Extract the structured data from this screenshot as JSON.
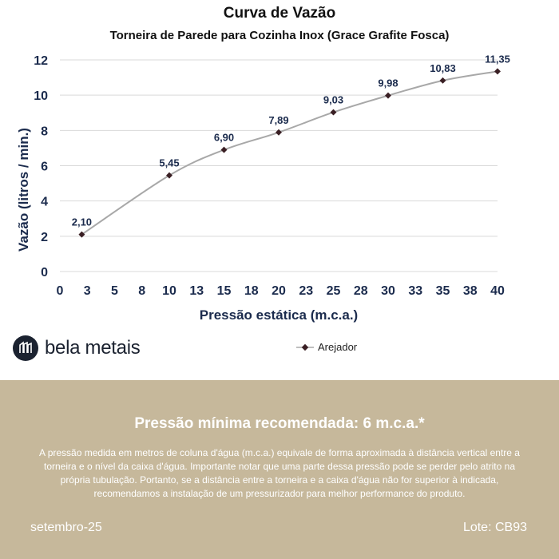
{
  "chart_data": {
    "type": "line",
    "title": "Curva de Vazão",
    "subtitle": "Torneira de Parede para Cozinha Inox (Grace Grafite Fosca)",
    "xlabel": "Pressão estática (m.c.a.)",
    "ylabel": "Vazão (litros / min.)",
    "xlim": [
      0,
      40
    ],
    "ylim": [
      0,
      12
    ],
    "x_ticks": [
      "0",
      "3",
      "5",
      "8",
      "10",
      "13",
      "15",
      "18",
      "20",
      "23",
      "25",
      "28",
      "30",
      "33",
      "35",
      "38",
      "40"
    ],
    "y_ticks": [
      0,
      2,
      4,
      6,
      8,
      10,
      12
    ],
    "grid": "horizontal",
    "legend_position": "bottom",
    "series": [
      {
        "name": "Arejador",
        "color": "#a8a8a8",
        "marker_color": "#3a1f24",
        "x": [
          2,
          10,
          15,
          20,
          25,
          30,
          35,
          40
        ],
        "y": [
          2.1,
          5.45,
          6.9,
          7.89,
          9.03,
          9.98,
          10.83,
          11.35
        ],
        "labels": [
          "2,10",
          "5,45",
          "6,90",
          "7,89",
          "9,03",
          "9,98",
          "10,83",
          "11,35"
        ]
      }
    ]
  },
  "brand": {
    "name": "bela metais",
    "icon": "bela-metais-logo-icon"
  },
  "footer": {
    "heading": "Pressão mínima recomendada: 6 m.c.a.*",
    "body": "A pressão medida em metros de coluna d'água (m.c.a.) equivale de forma aproximada à distância vertical entre a torneira e o nível da caixa d'água. Importante notar que uma parte dessa pressão pode se perder pelo atrito na própria tubulação. Portanto, se a distância entre a torneira e a caixa d'água não for superior à indicada, recomendamos a instalação de um pressurizador para melhor performance do produto.",
    "date": "setembro-25",
    "lot": "Lote: CB93",
    "background": "#c6b89b"
  }
}
